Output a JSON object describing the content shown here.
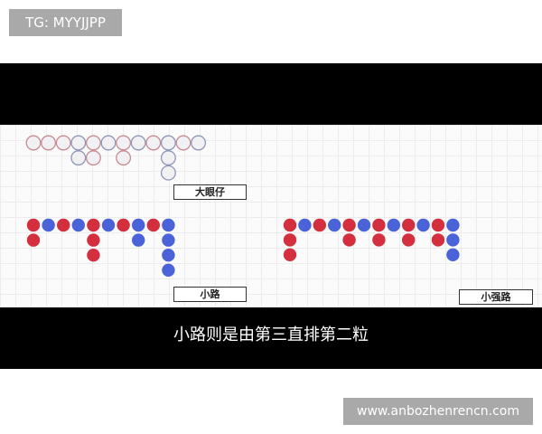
{
  "watermark_top": "TG: MYYJJPP",
  "watermark_bottom": "www.anbozhenrencn.com",
  "subtitle": "小路则是由第三直排第二粒",
  "colors": {
    "red": "#d42f3f",
    "blue": "#4a63d8",
    "red_outline": "#c98a92",
    "blue_outline": "#8f95b8"
  },
  "roads": [
    {
      "label": "大眼仔",
      "style": "hollow",
      "columns": [
        [
          "R"
        ],
        [
          "R"
        ],
        [
          "R"
        ],
        [
          "B",
          "B"
        ],
        [
          "R",
          "R"
        ],
        [
          "B"
        ],
        [
          "R",
          "R"
        ],
        [
          "B"
        ],
        [
          "R"
        ],
        [
          "B",
          "B",
          "B"
        ],
        [
          "R"
        ],
        [
          "B"
        ]
      ]
    },
    {
      "label": "小路",
      "style": "solid",
      "columns": [
        [
          "R",
          "R"
        ],
        [
          "B"
        ],
        [
          "R"
        ],
        [
          "B"
        ],
        [
          "R",
          "R",
          "R"
        ],
        [
          "B"
        ],
        [
          "R"
        ],
        [
          "B",
          "B"
        ],
        [
          "R"
        ],
        [
          "B",
          "B",
          "B",
          "B"
        ]
      ]
    },
    {
      "label": "小强路",
      "style": "solid",
      "columns": [
        [
          "R",
          "R",
          "R"
        ],
        [
          "B"
        ],
        [
          "R"
        ],
        [
          "B"
        ],
        [
          "R",
          "R"
        ],
        [
          "B"
        ],
        [
          "R",
          "R"
        ],
        [
          "B"
        ],
        [
          "R",
          "R"
        ],
        [
          "B"
        ],
        [
          "R",
          "R"
        ],
        [
          "B",
          "B",
          "B"
        ]
      ]
    }
  ]
}
